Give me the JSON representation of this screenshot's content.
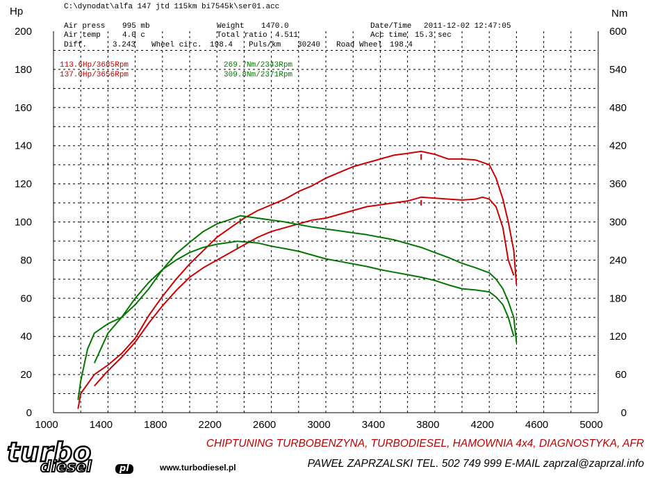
{
  "header": {
    "file_path": "C:\\dynodat\\alfa 147 jtd 115km bi7545k\\ser01.acc",
    "left_axis_unit": "Hp",
    "right_axis_unit": "Nm",
    "row1": {
      "label1": "Air press",
      "value1": "995 mb",
      "label2": "Weight",
      "value2": "1470.0",
      "label3": "Date/Time",
      "value3": "2011-12-02 12:47:05"
    },
    "row2": {
      "label1": "Air temp",
      "value1": "4.0 c",
      "label2": "Total ratio",
      "value2": "4.511",
      "label3": "Acc time",
      "value3": "15.3 sec"
    },
    "row3": {
      "label1": "Diff.",
      "value1": "3.243",
      "label2": "Wheel circ.",
      "value2": "198.4",
      "label3": "Puls/km",
      "value3": "30240",
      "label4": "Road Wheel",
      "value4": "198.4"
    }
  },
  "peaks": {
    "power_stock": "113.6Hp/3685Rpm",
    "power_tuned": "137.0Hp/3656Rpm",
    "torque_stock": "269.7Nm/2343Rpm",
    "torque_tuned": "309.8Nm/2371Rpm"
  },
  "colors": {
    "power": "#cc0000",
    "torque": "#007700",
    "grid": "#000000"
  },
  "chart_data": {
    "type": "line",
    "xlim": [
      1000,
      5000
    ],
    "ylim_left": [
      0,
      200
    ],
    "ylim_right": [
      0,
      600
    ],
    "x_ticks": [
      1000,
      1400,
      1800,
      2200,
      2600,
      3000,
      3400,
      3800,
      4200,
      4600,
      5000
    ],
    "y_ticks_left": [
      0,
      20,
      40,
      60,
      80,
      100,
      120,
      140,
      160,
      180,
      200
    ],
    "y_ticks_right": [
      0,
      60,
      120,
      180,
      240,
      300,
      360,
      420,
      480,
      540,
      600
    ],
    "grid": true,
    "series": [
      {
        "axis": "left",
        "color": "#cc0000",
        "peak_label": "113.6Hp/3685Rpm",
        "points": [
          [
            1300,
            14
          ],
          [
            1400,
            22
          ],
          [
            1500,
            29
          ],
          [
            1600,
            37
          ],
          [
            1700,
            47
          ],
          [
            1800,
            56
          ],
          [
            1900,
            64
          ],
          [
            2000,
            71
          ],
          [
            2100,
            76
          ],
          [
            2200,
            80
          ],
          [
            2300,
            84
          ],
          [
            2400,
            88
          ],
          [
            2500,
            92
          ],
          [
            2600,
            95
          ],
          [
            2700,
            97
          ],
          [
            2800,
            99
          ],
          [
            2900,
            101
          ],
          [
            3000,
            102
          ],
          [
            3100,
            104
          ],
          [
            3200,
            106
          ],
          [
            3300,
            108
          ],
          [
            3400,
            109
          ],
          [
            3500,
            110
          ],
          [
            3600,
            111
          ],
          [
            3700,
            113
          ],
          [
            3800,
            112.5
          ],
          [
            3900,
            112
          ],
          [
            4000,
            111.5
          ],
          [
            4100,
            112
          ],
          [
            4150,
            113
          ],
          [
            4200,
            112
          ],
          [
            4250,
            108
          ],
          [
            4300,
            97
          ],
          [
            4340,
            80
          ],
          [
            4380,
            72
          ]
        ]
      },
      {
        "axis": "left",
        "color": "#cc0000",
        "peak_label": "137.0Hp/3656Rpm",
        "points": [
          [
            1180,
            2
          ],
          [
            1200,
            10
          ],
          [
            1300,
            20
          ],
          [
            1400,
            25
          ],
          [
            1500,
            31
          ],
          [
            1600,
            39
          ],
          [
            1700,
            51
          ],
          [
            1800,
            61
          ],
          [
            1900,
            70
          ],
          [
            2000,
            78
          ],
          [
            2100,
            85
          ],
          [
            2200,
            92
          ],
          [
            2300,
            97
          ],
          [
            2400,
            102
          ],
          [
            2500,
            106
          ],
          [
            2600,
            109
          ],
          [
            2700,
            112
          ],
          [
            2800,
            116
          ],
          [
            2900,
            119
          ],
          [
            3000,
            123
          ],
          [
            3100,
            126
          ],
          [
            3200,
            129
          ],
          [
            3300,
            131
          ],
          [
            3400,
            133
          ],
          [
            3500,
            135
          ],
          [
            3600,
            136
          ],
          [
            3700,
            137
          ],
          [
            3800,
            135.5
          ],
          [
            3900,
            133
          ],
          [
            4000,
            133
          ],
          [
            4100,
            132.5
          ],
          [
            4200,
            130
          ],
          [
            4250,
            123
          ],
          [
            4300,
            112
          ],
          [
            4340,
            100
          ],
          [
            4380,
            85
          ],
          [
            4400,
            67
          ]
        ]
      },
      {
        "axis": "right",
        "color": "#007700",
        "peak_label": "269.7Nm/2343Rpm",
        "points": [
          [
            1300,
            78
          ],
          [
            1400,
            125
          ],
          [
            1500,
            150
          ],
          [
            1600,
            180
          ],
          [
            1700,
            205
          ],
          [
            1800,
            225
          ],
          [
            1900,
            240
          ],
          [
            2000,
            252
          ],
          [
            2100,
            260
          ],
          [
            2200,
            265
          ],
          [
            2300,
            268
          ],
          [
            2350,
            269.7
          ],
          [
            2500,
            267
          ],
          [
            2600,
            262
          ],
          [
            2700,
            258
          ],
          [
            2800,
            254
          ],
          [
            2900,
            248
          ],
          [
            3000,
            242
          ],
          [
            3100,
            238
          ],
          [
            3200,
            234
          ],
          [
            3300,
            230
          ],
          [
            3400,
            225
          ],
          [
            3500,
            221
          ],
          [
            3600,
            217
          ],
          [
            3700,
            213
          ],
          [
            3800,
            208
          ],
          [
            3900,
            201
          ],
          [
            4000,
            195
          ],
          [
            4100,
            193
          ],
          [
            4200,
            190
          ],
          [
            4250,
            182
          ],
          [
            4300,
            170
          ],
          [
            4340,
            150
          ],
          [
            4380,
            120
          ]
        ]
      },
      {
        "axis": "right",
        "color": "#007700",
        "peak_label": "309.8Nm/2371Rpm",
        "points": [
          [
            1180,
            20
          ],
          [
            1200,
            50
          ],
          [
            1250,
            100
          ],
          [
            1300,
            125
          ],
          [
            1400,
            140
          ],
          [
            1500,
            150
          ],
          [
            1600,
            170
          ],
          [
            1700,
            195
          ],
          [
            1800,
            225
          ],
          [
            1900,
            250
          ],
          [
            2000,
            268
          ],
          [
            2100,
            285
          ],
          [
            2200,
            297
          ],
          [
            2300,
            304
          ],
          [
            2371,
            309.8
          ],
          [
            2500,
            306
          ],
          [
            2600,
            303
          ],
          [
            2700,
            300
          ],
          [
            2800,
            296
          ],
          [
            2900,
            292
          ],
          [
            3000,
            289
          ],
          [
            3100,
            286
          ],
          [
            3200,
            283
          ],
          [
            3300,
            280
          ],
          [
            3400,
            276
          ],
          [
            3500,
            272
          ],
          [
            3600,
            266
          ],
          [
            3700,
            260
          ],
          [
            3800,
            252
          ],
          [
            3900,
            244
          ],
          [
            4000,
            235
          ],
          [
            4100,
            228
          ],
          [
            4200,
            220
          ],
          [
            4250,
            210
          ],
          [
            4300,
            195
          ],
          [
            4340,
            175
          ],
          [
            4380,
            150
          ],
          [
            4400,
            110
          ]
        ]
      }
    ]
  },
  "footer": {
    "logo_turbo": "turbo",
    "logo_diesel": "diesel",
    "logo_pl": "pl",
    "website": "www.turbodiesel.pl",
    "tagline": "CHIPTUNING TURBOBENZYNA, TURBODIESEL, HAMOWNIA 4x4, DIAGNOSTYKA, AFR",
    "contact": "PAWEŁ ZAPRZALSKI TEL. 502 749 999 E-MAIL zaprzal@zaprzal.info"
  }
}
